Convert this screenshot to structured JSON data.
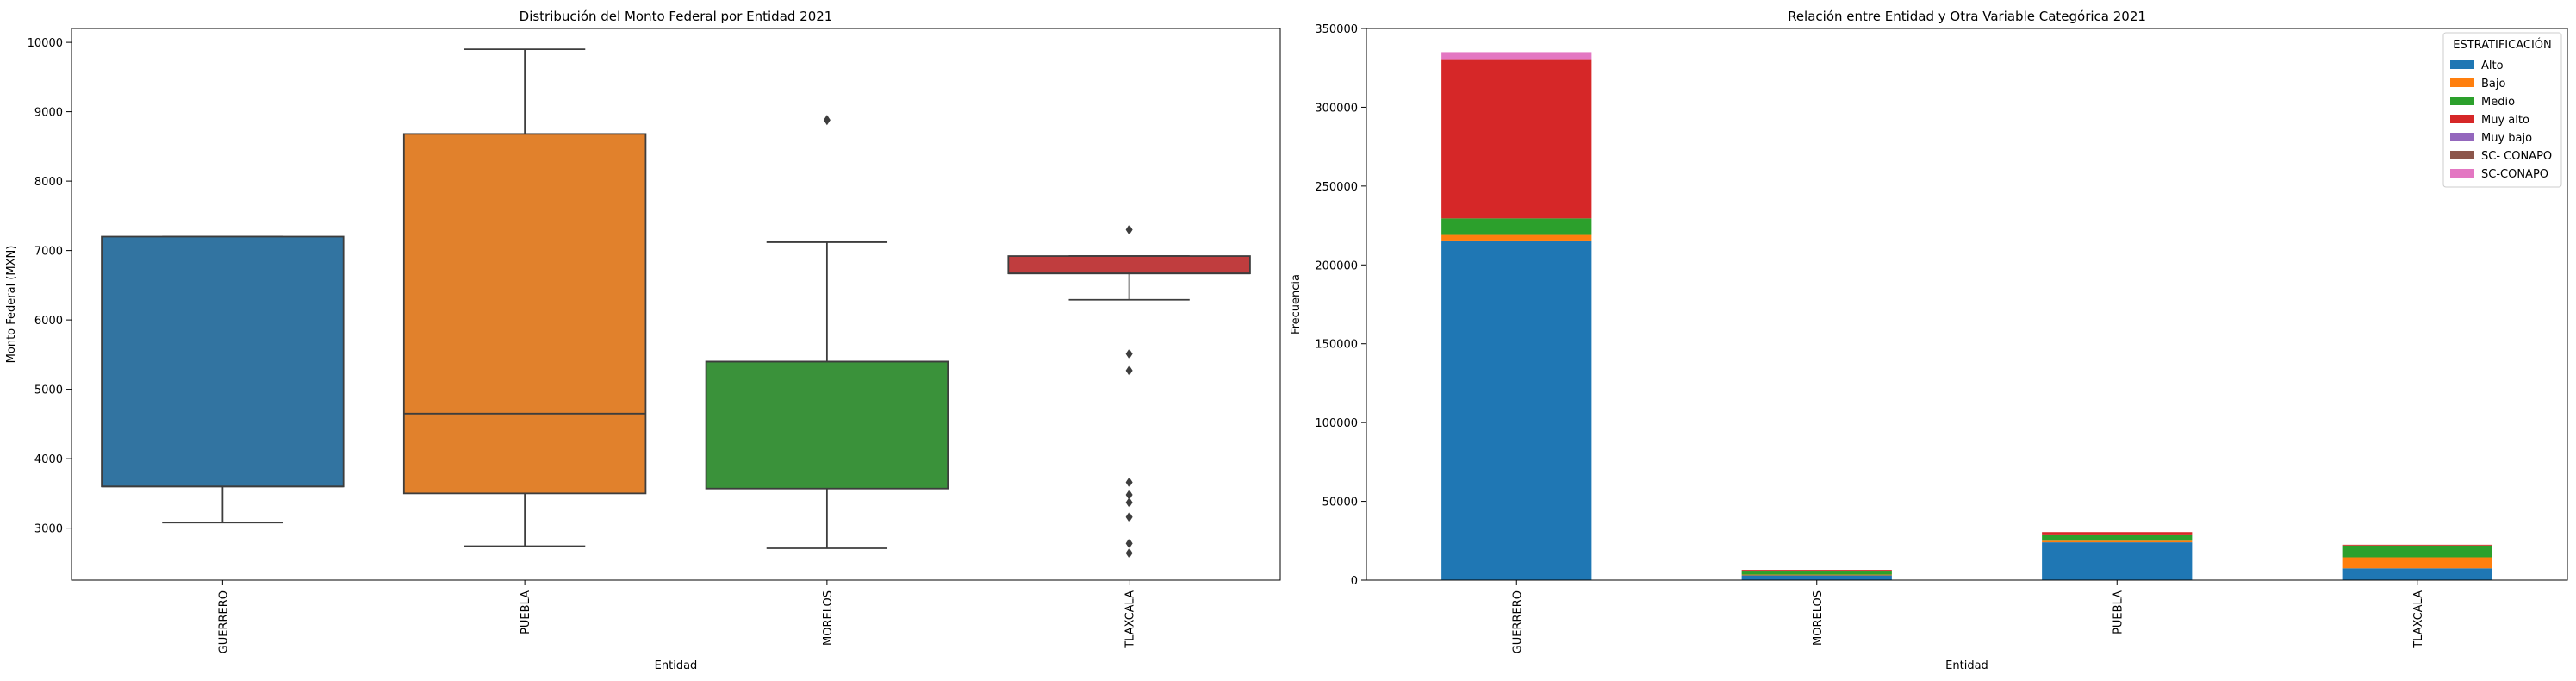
{
  "chart_data": [
    {
      "type": "box",
      "title": "Distribución del Monto Federal por Entidad 2021",
      "xlabel": "Entidad",
      "ylabel": "Monto Federal (MXN)",
      "ylim": [
        2250,
        10200
      ],
      "yticks": [
        3000,
        4000,
        5000,
        6000,
        7000,
        8000,
        9000,
        10000
      ],
      "categories": [
        "GUERRERO",
        "PUEBLA",
        "MORELOS",
        "TLAXCALA"
      ],
      "boxes": [
        {
          "category": "GUERRERO",
          "whisker_low": 3080,
          "q1": 3600,
          "median": 3600,
          "q3": 7200,
          "whisker_high": 7200,
          "outliers": [],
          "color": "#3274a1"
        },
        {
          "category": "PUEBLA",
          "whisker_low": 2740,
          "q1": 3500,
          "median": 4650,
          "q3": 8680,
          "whisker_high": 9900,
          "outliers": [],
          "color": "#e1812c"
        },
        {
          "category": "MORELOS",
          "whisker_low": 2710,
          "q1": 3570,
          "median": 5400,
          "q3": 5400,
          "whisker_high": 7120,
          "outliers": [
            8880
          ],
          "color": "#3a923a"
        },
        {
          "category": "TLAXCALA",
          "whisker_low": 6290,
          "q1": 6670,
          "median": 6670,
          "q3": 6920,
          "whisker_high": 6920,
          "outliers": [
            7300,
            5510,
            5270,
            3660,
            3480,
            3370,
            3160,
            2780,
            2640
          ],
          "color": "#c03d3e"
        }
      ]
    },
    {
      "type": "bar",
      "stacked": true,
      "title": "Relación entre Entidad y Otra Variable Categórica 2021",
      "xlabel": "Entidad",
      "ylabel": "Frecuencia",
      "ylim": [
        0,
        350000
      ],
      "yticks": [
        0,
        50000,
        100000,
        150000,
        200000,
        250000,
        300000,
        350000
      ],
      "categories": [
        "GUERRERO",
        "MORELOS",
        "PUEBLA",
        "TLAXCALA"
      ],
      "legend_title": "ESTRATIFICACIÓN",
      "legend_position": "top-right",
      "series": [
        {
          "name": "Alto",
          "color": "#1f77b4",
          "values": [
            215500,
            3000,
            24000,
            7500
          ]
        },
        {
          "name": "Bajo",
          "color": "#ff7f0e",
          "values": [
            3500,
            500,
            1000,
            7000
          ]
        },
        {
          "name": "Medio",
          "color": "#2ca02c",
          "values": [
            10500,
            2500,
            3500,
            7500
          ]
        },
        {
          "name": "Muy alto",
          "color": "#d62728",
          "values": [
            100500,
            500,
            2000,
            500
          ]
        },
        {
          "name": "Muy bajo",
          "color": "#9467bd",
          "values": [
            0,
            0,
            0,
            0
          ]
        },
        {
          "name": "SC- CONAPO",
          "color": "#8c564b",
          "values": [
            0,
            0,
            0,
            0
          ]
        },
        {
          "name": "SC-CONAPO",
          "color": "#e377c2",
          "values": [
            5000,
            0,
            0,
            0
          ]
        }
      ]
    }
  ]
}
